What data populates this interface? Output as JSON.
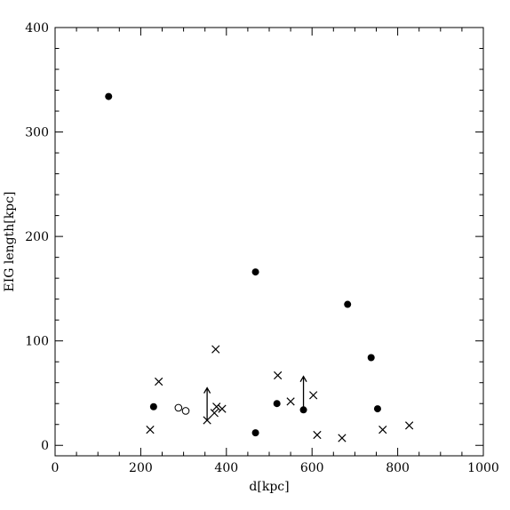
{
  "chart_data": {
    "type": "scatter",
    "xlabel": "d[kpc]",
    "ylabel": "EIG length[kpc]",
    "xlim": [
      0,
      1000
    ],
    "ylim": [
      -10,
      400
    ],
    "x_ticks": [
      0,
      200,
      400,
      600,
      800,
      1000
    ],
    "y_ticks": [
      0,
      100,
      200,
      300,
      400
    ],
    "x_tick_labels": [
      "0",
      "200",
      "400",
      "600",
      "800",
      "1000"
    ],
    "y_tick_labels": [
      "0",
      "100",
      "200",
      "300",
      "400"
    ],
    "grid": false,
    "series": [
      {
        "marker": "filled-circle",
        "points": [
          {
            "x": 125,
            "y": 334
          },
          {
            "x": 230,
            "y": 37
          },
          {
            "x": 468,
            "y": 166
          },
          {
            "x": 468,
            "y": 12
          },
          {
            "x": 518,
            "y": 40
          },
          {
            "x": 580,
            "y": 34
          },
          {
            "x": 683,
            "y": 135
          },
          {
            "x": 738,
            "y": 84
          },
          {
            "x": 753,
            "y": 35
          }
        ]
      },
      {
        "marker": "open-circle",
        "points": [
          {
            "x": 288,
            "y": 36
          },
          {
            "x": 305,
            "y": 33
          }
        ]
      },
      {
        "marker": "cross",
        "points": [
          {
            "x": 222,
            "y": 15
          },
          {
            "x": 242,
            "y": 61
          },
          {
            "x": 355,
            "y": 24
          },
          {
            "x": 372,
            "y": 31
          },
          {
            "x": 375,
            "y": 92
          },
          {
            "x": 377,
            "y": 37
          },
          {
            "x": 390,
            "y": 35
          },
          {
            "x": 520,
            "y": 67
          },
          {
            "x": 550,
            "y": 42
          },
          {
            "x": 603,
            "y": 48
          },
          {
            "x": 612,
            "y": 10
          },
          {
            "x": 670,
            "y": 7
          },
          {
            "x": 765,
            "y": 15
          },
          {
            "x": 827,
            "y": 19
          }
        ]
      }
    ],
    "arrows": [
      {
        "x": 355,
        "y_from": 24,
        "y_to": 55
      },
      {
        "x": 580,
        "y_from": 34,
        "y_to": 66
      }
    ]
  }
}
